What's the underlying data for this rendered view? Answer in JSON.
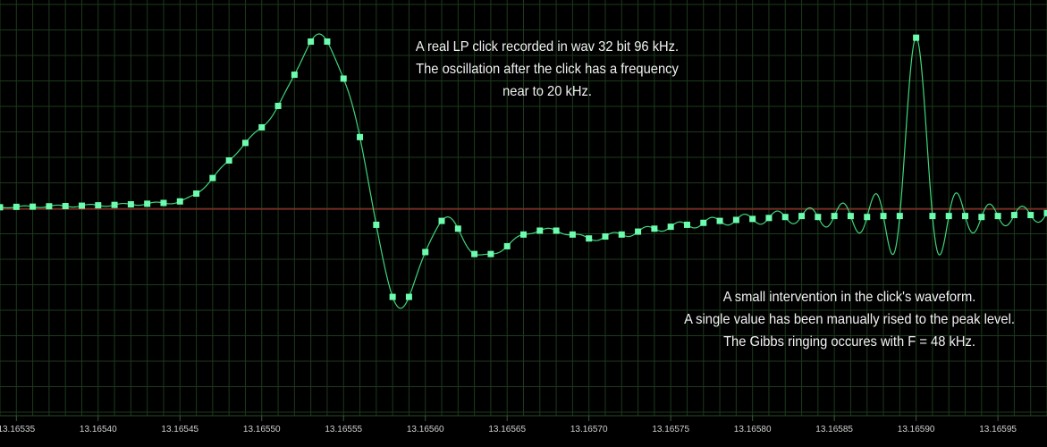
{
  "chart_data": {
    "type": "line",
    "x_range": [
      13.16534,
      13.16598
    ],
    "y_range": [
      -1.0,
      1.0
    ],
    "grid": true,
    "colors": {
      "background": "#000000",
      "grid": "#1c3a1c",
      "zero_line": "#c0282c",
      "curve": "#3ed67a",
      "marker": "#6dfcae",
      "text": "#f2f2f2",
      "tick_label": "#cfcfcf"
    },
    "x_ticks": [
      "13.16535",
      "13.16540",
      "13.16545",
      "13.16550",
      "13.16555",
      "13.16560",
      "13.16565",
      "13.16570",
      "13.16575",
      "13.16580",
      "13.16585",
      "13.16590",
      "13.16595"
    ],
    "annotations": [
      {
        "lines": [
          "A real LP click recorded in wav 32 bit 96 kHz.",
          "The oscillation after the click has a frequency",
          "near to 20 kHz."
        ]
      },
      {
        "lines": [
          "A small intervention in the click's waveform.",
          "A single value has been manually rised to the peak level.",
          "The Gibbs ringing occures with F = 48 kHz."
        ]
      }
    ],
    "series": [
      {
        "values": [
          [
            13.16534,
            0.01
          ],
          [
            13.16535,
            0.012
          ],
          [
            13.16536,
            0.013
          ],
          [
            13.16537,
            0.015
          ],
          [
            13.16538,
            0.016
          ],
          [
            13.16539,
            0.018
          ],
          [
            13.1654,
            0.02
          ],
          [
            13.16541,
            0.022
          ],
          [
            13.16542,
            0.025
          ],
          [
            13.16543,
            0.028
          ],
          [
            13.16544,
            0.032
          ],
          [
            13.16545,
            0.04
          ],
          [
            13.16546,
            0.08
          ],
          [
            13.16547,
            0.16
          ],
          [
            13.16548,
            0.25
          ],
          [
            13.16549,
            0.34
          ],
          [
            13.1655,
            0.42
          ],
          [
            13.16551,
            0.53
          ],
          [
            13.16552,
            0.69
          ],
          [
            13.16553,
            0.86
          ],
          [
            13.16554,
            0.86
          ],
          [
            13.16555,
            0.67
          ],
          [
            13.16556,
            0.37
          ],
          [
            13.16557,
            -0.08
          ],
          [
            13.16558,
            -0.45
          ],
          [
            13.16559,
            -0.45
          ],
          [
            13.1656,
            -0.22
          ],
          [
            13.16561,
            -0.06
          ],
          [
            13.16562,
            -0.1
          ],
          [
            13.16563,
            -0.23
          ],
          [
            13.16564,
            -0.23
          ],
          [
            13.16565,
            -0.19
          ],
          [
            13.16566,
            -0.13
          ],
          [
            13.16567,
            -0.11
          ],
          [
            13.16568,
            -0.11
          ],
          [
            13.16569,
            -0.13
          ],
          [
            13.1657,
            -0.15
          ],
          [
            13.16571,
            -0.14
          ],
          [
            13.16572,
            -0.13
          ],
          [
            13.16573,
            -0.115
          ],
          [
            13.16574,
            -0.1
          ],
          [
            13.16575,
            -0.09
          ],
          [
            13.16576,
            -0.08
          ],
          [
            13.16577,
            -0.07
          ],
          [
            13.16578,
            -0.06
          ],
          [
            13.16579,
            -0.055
          ],
          [
            13.1658,
            -0.05
          ],
          [
            13.16581,
            -0.045
          ],
          [
            13.16582,
            -0.04
          ],
          [
            13.16583,
            -0.035
          ],
          [
            13.16584,
            -0.04
          ],
          [
            13.16585,
            -0.035
          ],
          [
            13.16586,
            -0.035
          ],
          [
            13.16587,
            -0.04
          ],
          [
            13.16588,
            -0.035
          ],
          [
            13.16589,
            -0.035
          ],
          [
            13.1659,
            0.88
          ],
          [
            13.16591,
            -0.035
          ],
          [
            13.16592,
            -0.035
          ],
          [
            13.16593,
            -0.035
          ],
          [
            13.16594,
            -0.04
          ],
          [
            13.16595,
            -0.035
          ],
          [
            13.16596,
            -0.03
          ],
          [
            13.16597,
            -0.03
          ],
          [
            13.16598,
            -0.02
          ]
        ]
      }
    ]
  }
}
